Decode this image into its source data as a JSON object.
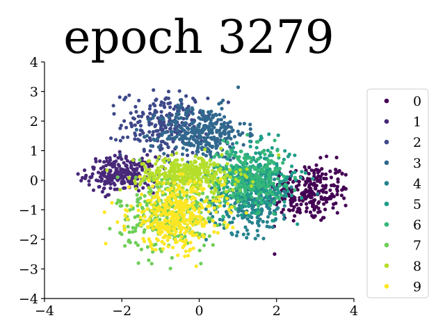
{
  "chart_data": {
    "type": "scatter",
    "title": "epoch 3279",
    "xlabel": "",
    "ylabel": "",
    "xlim": [
      -4,
      4
    ],
    "ylim": [
      -4,
      4
    ],
    "xticks": [
      -4,
      -2,
      0,
      2,
      4
    ],
    "yticks": [
      -4,
      -3,
      -2,
      -1,
      0,
      1,
      2,
      3,
      4
    ],
    "xtick_labels": [
      "−4",
      "−2",
      "0",
      "2",
      "4"
    ],
    "ytick_labels": [
      "−4",
      "−3",
      "−2",
      "−1",
      "0",
      "1",
      "2",
      "3",
      "4"
    ],
    "grid": false,
    "legend_position": "right",
    "series": [
      {
        "name": "0",
        "color": "#440154",
        "center": [
          2.8,
          -0.4
        ],
        "spread": [
          0.55,
          0.5
        ],
        "count": 260
      },
      {
        "name": "1",
        "color": "#482878",
        "center": [
          -2.0,
          0.2
        ],
        "spread": [
          0.45,
          0.3
        ],
        "count": 240
      },
      {
        "name": "2",
        "color": "#3e4989",
        "center": [
          -0.9,
          1.9
        ],
        "spread": [
          0.55,
          0.55
        ],
        "count": 220
      },
      {
        "name": "3",
        "color": "#31688e",
        "center": [
          0.1,
          1.6
        ],
        "spread": [
          0.55,
          0.45
        ],
        "count": 300
      },
      {
        "name": "4",
        "color": "#26828e",
        "center": [
          1.3,
          -0.7
        ],
        "spread": [
          0.55,
          0.55
        ],
        "count": 260
      },
      {
        "name": "5",
        "color": "#1f9e89",
        "center": [
          1.5,
          0.1
        ],
        "spread": [
          0.5,
          0.55
        ],
        "count": 260
      },
      {
        "name": "6",
        "color": "#35b779",
        "center": [
          1.2,
          0.1
        ],
        "spread": [
          0.5,
          0.5
        ],
        "count": 260
      },
      {
        "name": "7",
        "color": "#6ece58",
        "center": [
          -0.8,
          -1.1
        ],
        "spread": [
          0.65,
          0.65
        ],
        "count": 300
      },
      {
        "name": "8",
        "color": "#b5de2b",
        "center": [
          -0.3,
          0.2
        ],
        "spread": [
          0.65,
          0.3
        ],
        "count": 340
      },
      {
        "name": "9",
        "color": "#fde725",
        "center": [
          -0.6,
          -1.2
        ],
        "spread": [
          0.6,
          0.55
        ],
        "count": 380
      }
    ]
  }
}
